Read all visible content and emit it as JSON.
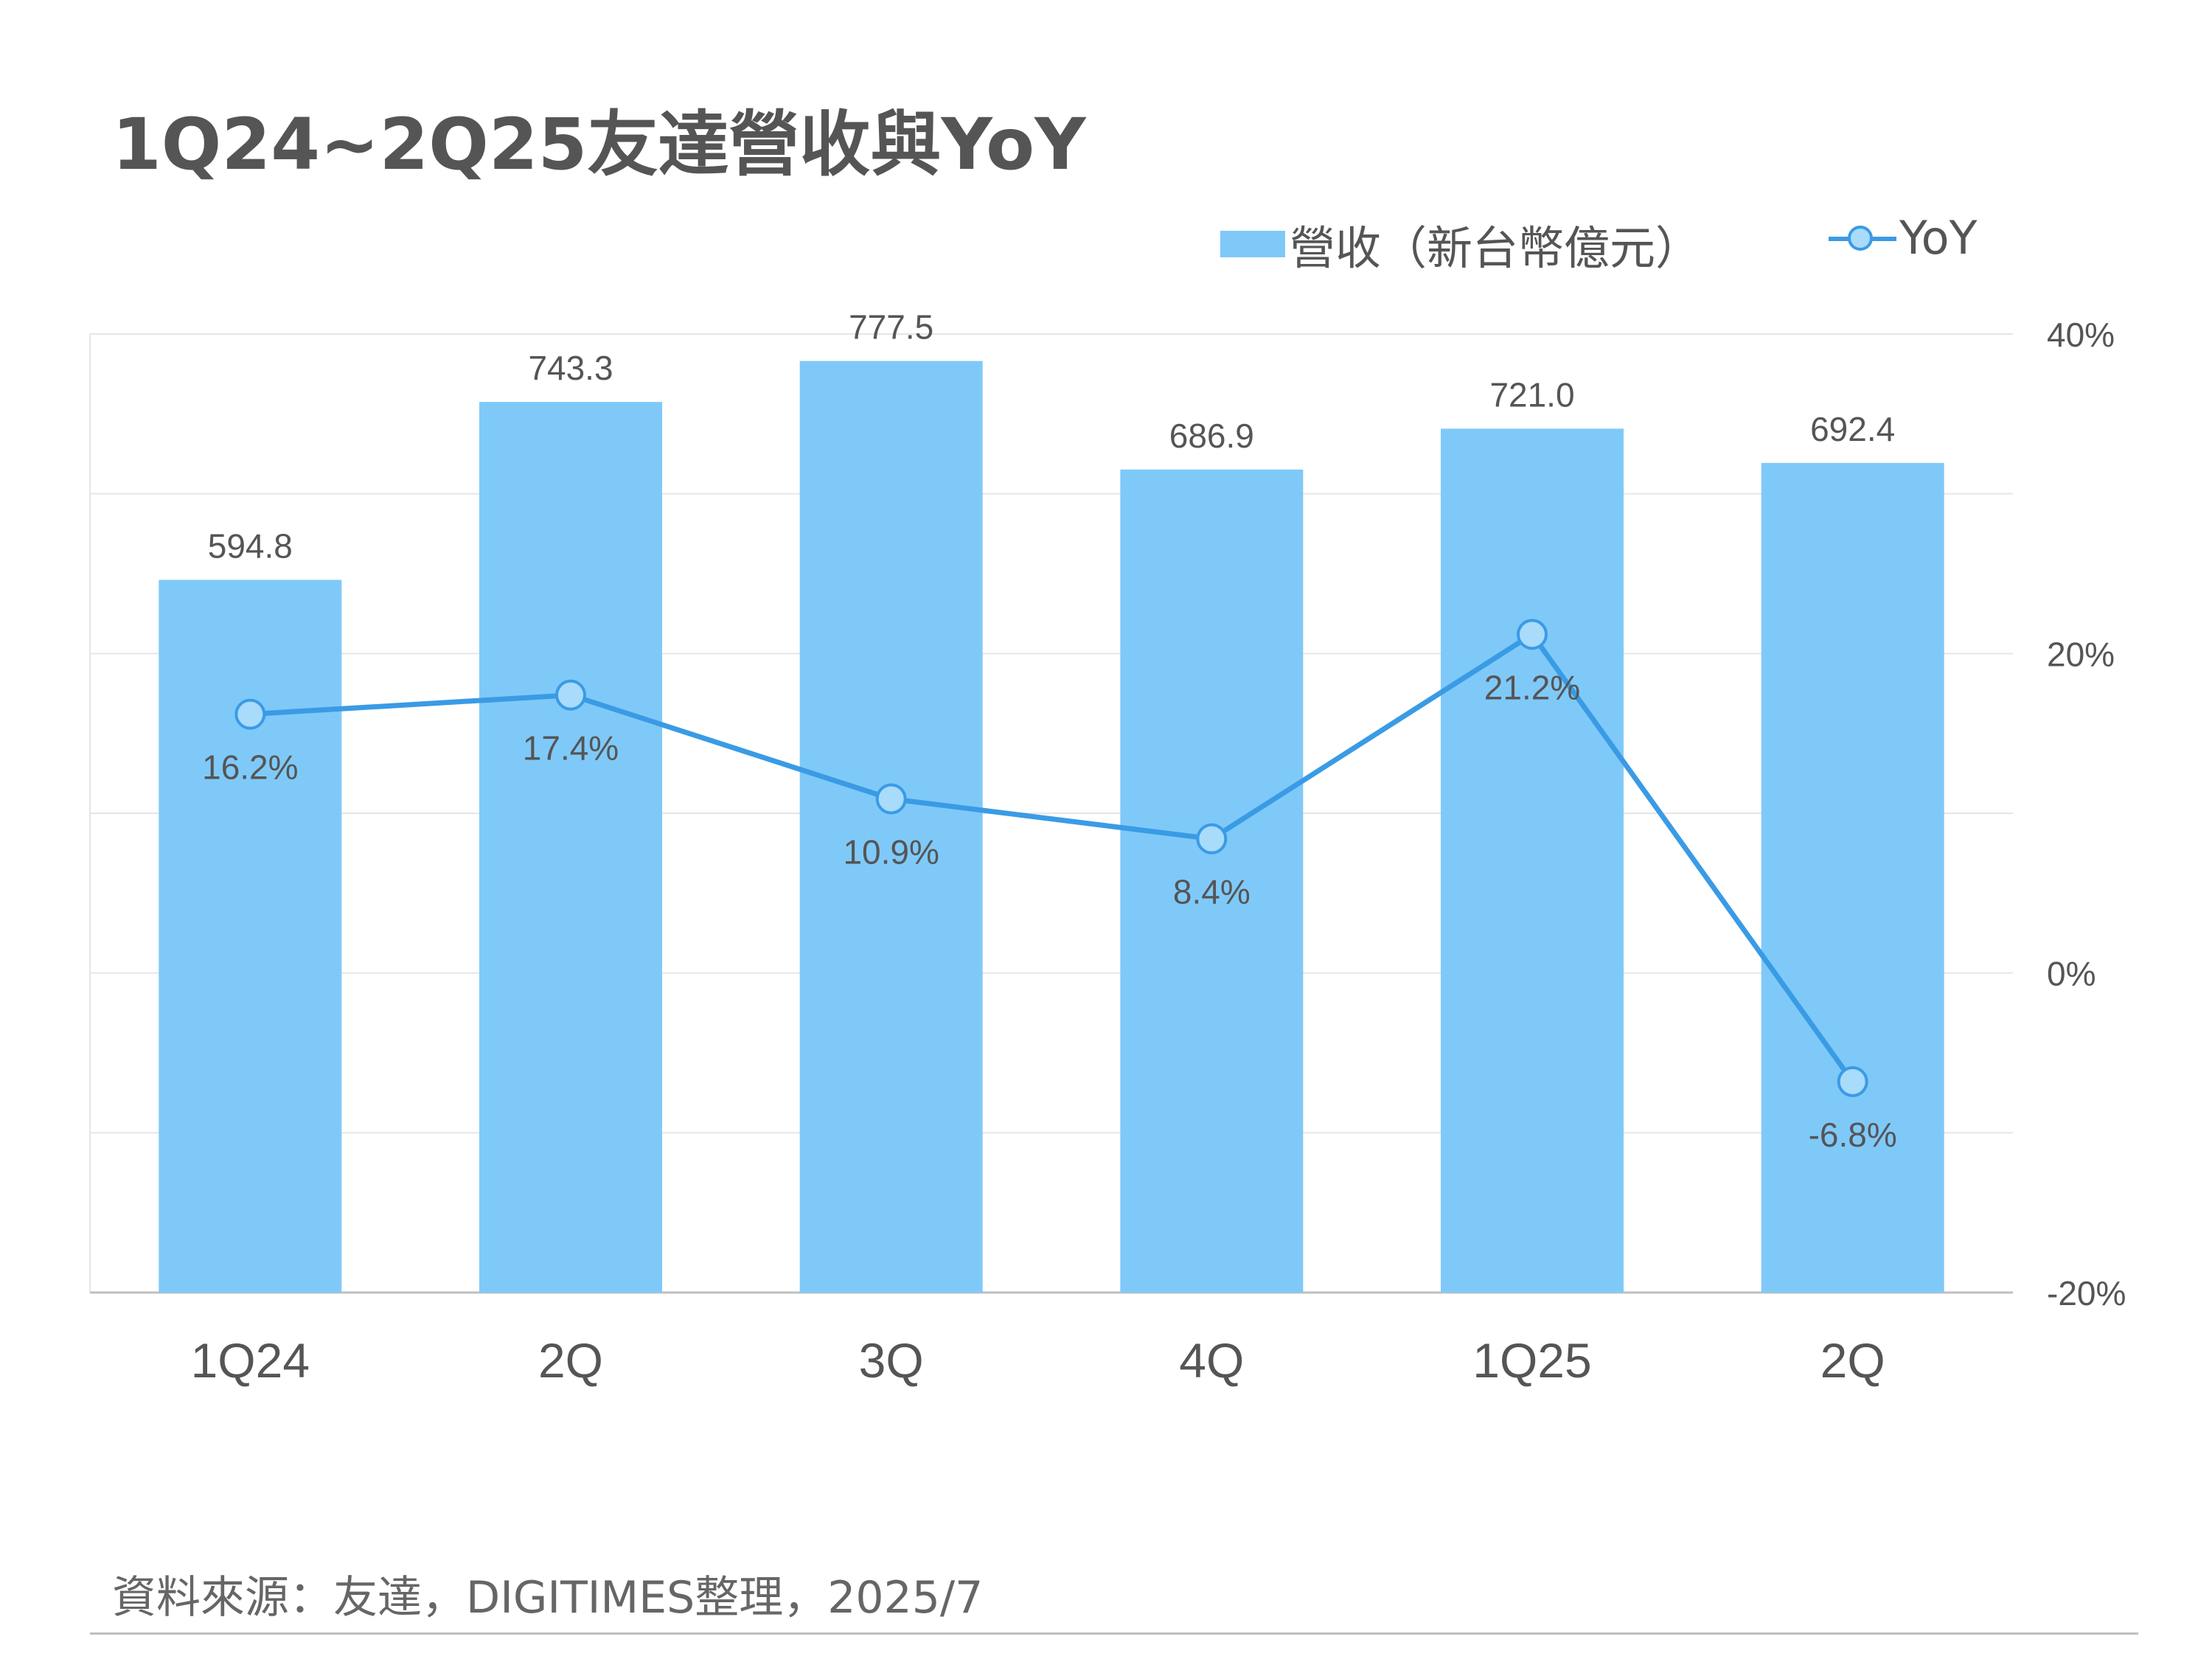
{
  "title": "1Q24~2Q25友達營收與YoY",
  "legend": {
    "bar_label": "營收（新台幣億元）",
    "line_label": "YoY"
  },
  "source": "資料來源：友達，DIGITIMES整理，2025/7",
  "colors": {
    "bar": "#7fc9f9",
    "line": "#3a9be5",
    "marker_fill": "#a9dbfb",
    "text": "#555555",
    "grid": "#e6e6e6",
    "axis": "#bfbfbf"
  },
  "chart_data": {
    "type": "bar",
    "categories": [
      "1Q24",
      "2Q",
      "3Q",
      "4Q",
      "1Q25",
      "2Q"
    ],
    "series": [
      {
        "name": "營收（新台幣億元）",
        "type": "bar",
        "axis": "left",
        "values": [
          594.8,
          743.3,
          777.5,
          686.9,
          721.0,
          692.4
        ],
        "labels": [
          "594.8",
          "743.3",
          "777.5",
          "686.9",
          "721.0",
          "692.4"
        ]
      },
      {
        "name": "YoY",
        "type": "line",
        "axis": "right",
        "values": [
          16.2,
          17.4,
          10.9,
          8.4,
          21.2,
          -6.8
        ],
        "labels": [
          "16.2%",
          "17.4%",
          "10.9%",
          "8.4%",
          "21.2%",
          "-6.8%"
        ]
      }
    ],
    "y_left": {
      "range": [
        0,
        800
      ],
      "tick_labels_visible": false
    },
    "y_right": {
      "range": [
        -20,
        40
      ],
      "ticks": [
        40,
        20,
        0,
        -20
      ],
      "tick_labels": [
        "40%",
        "20%",
        "0%",
        "-20%"
      ]
    },
    "grid": true,
    "legend_position": "top-right"
  }
}
